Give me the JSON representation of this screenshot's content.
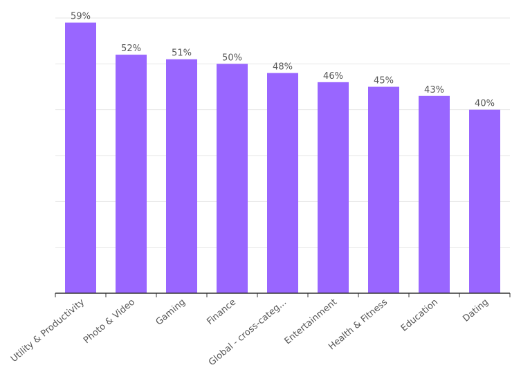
{
  "chart_data": {
    "type": "bar",
    "categories": [
      "Utility & Productivity",
      "Photo & Video",
      "Gaming",
      "Finance",
      "Global - cross-categ...",
      "Entertainment",
      "Health & Fitness",
      "Education",
      "Dating"
    ],
    "values": [
      59,
      52,
      51,
      50,
      48,
      46,
      45,
      43,
      40
    ],
    "value_labels": [
      "59%",
      "52%",
      "51%",
      "50%",
      "48%",
      "46%",
      "45%",
      "43%",
      "40%"
    ],
    "title": "",
    "xlabel": "",
    "ylabel": "",
    "ylim": [
      0,
      60
    ],
    "grid": true,
    "legend": "none",
    "bar_color": "#9966ff"
  }
}
